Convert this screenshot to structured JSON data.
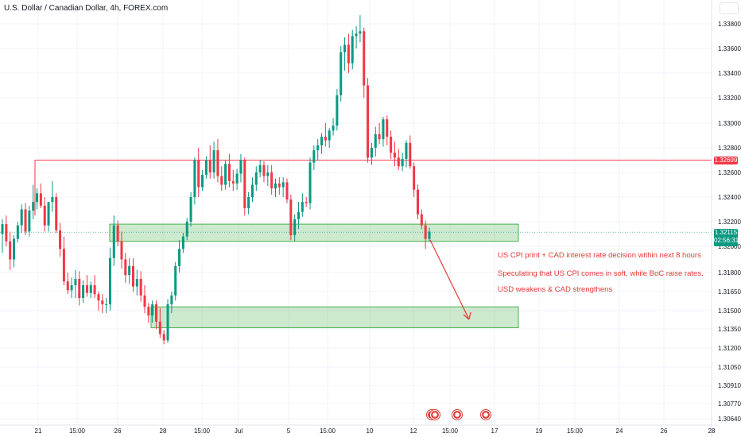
{
  "header": {
    "title": "U.S. Dollar / Canadian Dollar, 4h, FOREX.com"
  },
  "annotations": [
    "US CPI print + CAD interest rate decision within next 8 hours",
    "Speculating that US CPI comes in soft, while BoC raise rates.",
    "USD weakens & CAD strengthens"
  ],
  "price_tags": {
    "horizontal_line": "1.32699",
    "last_price": "1.32115",
    "countdown": "02:56:31"
  },
  "colors": {
    "up": "#089981",
    "down": "#f23645",
    "zone": "#4caf50",
    "arrow": "#e53935"
  },
  "chart_data": {
    "type": "candlestick",
    "title": "U.S. Dollar / Canadian Dollar, 4h, FOREX.com",
    "y_ticks": [
      "1.33800",
      "1.33600",
      "1.33400",
      "1.33200",
      "1.33000",
      "1.32800",
      "1.32600",
      "1.32400",
      "1.32200",
      "1.32000",
      "1.31800",
      "1.31650",
      "1.31500",
      "1.31350",
      "1.31200",
      "1.31050",
      "1.30910",
      "1.30770",
      "1.30640"
    ],
    "x_ticks": [
      "21",
      "15:00",
      "26",
      "28",
      "15:00",
      "Jul",
      "5",
      "15:00",
      "10",
      "12",
      "15:00",
      "17",
      "19",
      "15:00",
      "24",
      "26",
      "28"
    ],
    "ylim": [
      1.3061,
      1.3387
    ],
    "last_price": 1.32115,
    "horizontal_line": 1.32699,
    "zones": [
      {
        "name": "support",
        "top": 1.3218,
        "bottom": 1.3204
      },
      {
        "name": "target",
        "top": 1.3153,
        "bottom": 1.3136
      }
    ],
    "candles": [
      [
        1.321,
        1.3222,
        1.3195,
        1.3218
      ],
      [
        1.3218,
        1.3225,
        1.32,
        1.3204
      ],
      [
        1.3204,
        1.3212,
        1.3182,
        1.319
      ],
      [
        1.319,
        1.3209,
        1.3184,
        1.3206
      ],
      [
        1.3206,
        1.322,
        1.3203,
        1.3217
      ],
      [
        1.3217,
        1.3234,
        1.3211,
        1.323
      ],
      [
        1.323,
        1.3235,
        1.3209,
        1.3212
      ],
      [
        1.3212,
        1.3233,
        1.3208,
        1.3229
      ],
      [
        1.3229,
        1.325,
        1.3222,
        1.3236
      ],
      [
        1.3236,
        1.3247,
        1.323,
        1.3243
      ],
      [
        1.3243,
        1.3251,
        1.3231,
        1.3233
      ],
      [
        1.3233,
        1.324,
        1.3212,
        1.3217
      ],
      [
        1.3217,
        1.3235,
        1.3212,
        1.3236
      ],
      [
        1.3236,
        1.3253,
        1.3228,
        1.324
      ],
      [
        1.324,
        1.3243,
        1.3211,
        1.3213
      ],
      [
        1.3213,
        1.3219,
        1.3192,
        1.3198
      ],
      [
        1.3198,
        1.3208,
        1.317,
        1.3173
      ],
      [
        1.3173,
        1.318,
        1.3163,
        1.3166
      ],
      [
        1.3166,
        1.3176,
        1.316,
        1.317
      ],
      [
        1.317,
        1.3182,
        1.316,
        1.3175
      ],
      [
        1.3175,
        1.3181,
        1.3154,
        1.316
      ],
      [
        1.316,
        1.3174,
        1.3156,
        1.317
      ],
      [
        1.317,
        1.3178,
        1.3161,
        1.3164
      ],
      [
        1.3164,
        1.3173,
        1.316,
        1.317
      ],
      [
        1.317,
        1.3178,
        1.316,
        1.3163
      ],
      [
        1.3163,
        1.3165,
        1.315,
        1.3158
      ],
      [
        1.3158,
        1.3163,
        1.3148,
        1.3155
      ],
      [
        1.3155,
        1.316,
        1.3148,
        1.3155
      ],
      [
        1.3155,
        1.3199,
        1.315,
        1.3191
      ],
      [
        1.3191,
        1.3225,
        1.3185,
        1.3217
      ],
      [
        1.3217,
        1.3221,
        1.32,
        1.3204
      ],
      [
        1.3204,
        1.3212,
        1.3183,
        1.319
      ],
      [
        1.319,
        1.3195,
        1.3172,
        1.3178
      ],
      [
        1.3178,
        1.3191,
        1.3171,
        1.3185
      ],
      [
        1.3185,
        1.3191,
        1.3165,
        1.3169
      ],
      [
        1.3169,
        1.3182,
        1.3162,
        1.3175
      ],
      [
        1.3175,
        1.3181,
        1.3157,
        1.3162
      ],
      [
        1.3162,
        1.317,
        1.3148,
        1.3153
      ],
      [
        1.3153,
        1.3156,
        1.314,
        1.3146
      ],
      [
        1.3146,
        1.3158,
        1.314,
        1.3155
      ],
      [
        1.3155,
        1.3158,
        1.3135,
        1.3141
      ],
      [
        1.3141,
        1.3152,
        1.3128,
        1.3131
      ],
      [
        1.3131,
        1.3134,
        1.3123,
        1.3126
      ],
      [
        1.3126,
        1.3159,
        1.3124,
        1.3155
      ],
      [
        1.3155,
        1.3165,
        1.3148,
        1.3162
      ],
      [
        1.3162,
        1.3188,
        1.3158,
        1.3185
      ],
      [
        1.3185,
        1.3205,
        1.318,
        1.3198
      ],
      [
        1.3198,
        1.3211,
        1.3195,
        1.3208
      ],
      [
        1.3208,
        1.3223,
        1.3205,
        1.322
      ],
      [
        1.322,
        1.3244,
        1.3216,
        1.324
      ],
      [
        1.324,
        1.3272,
        1.3234,
        1.327
      ],
      [
        1.327,
        1.328,
        1.324,
        1.3248
      ],
      [
        1.3248,
        1.3262,
        1.3245,
        1.3258
      ],
      [
        1.3258,
        1.3273,
        1.3255,
        1.327
      ],
      [
        1.327,
        1.3282,
        1.3255,
        1.326
      ],
      [
        1.326,
        1.3285,
        1.3255,
        1.3278
      ],
      [
        1.3278,
        1.3287,
        1.3252,
        1.3257
      ],
      [
        1.3257,
        1.3265,
        1.3245,
        1.325
      ],
      [
        1.325,
        1.327,
        1.3246,
        1.3267
      ],
      [
        1.3267,
        1.3275,
        1.3248,
        1.3253
      ],
      [
        1.3253,
        1.3262,
        1.3245,
        1.3251
      ],
      [
        1.3251,
        1.3263,
        1.3246,
        1.3259
      ],
      [
        1.3259,
        1.3275,
        1.3252,
        1.327
      ],
      [
        1.327,
        1.3272,
        1.3225,
        1.3231
      ],
      [
        1.3231,
        1.3244,
        1.3226,
        1.324
      ],
      [
        1.324,
        1.3256,
        1.3236,
        1.325
      ],
      [
        1.325,
        1.3265,
        1.3245,
        1.326
      ],
      [
        1.326,
        1.327,
        1.3256,
        1.3266
      ],
      [
        1.3266,
        1.3269,
        1.3252,
        1.3257
      ],
      [
        1.3257,
        1.3266,
        1.3249,
        1.326
      ],
      [
        1.326,
        1.3266,
        1.3242,
        1.3247
      ],
      [
        1.3247,
        1.3255,
        1.324,
        1.3251
      ],
      [
        1.3251,
        1.3256,
        1.3242,
        1.3248
      ],
      [
        1.3248,
        1.3256,
        1.324,
        1.3252
      ],
      [
        1.3252,
        1.3255,
        1.3235,
        1.3238
      ],
      [
        1.3238,
        1.3242,
        1.3205,
        1.3209
      ],
      [
        1.3209,
        1.3226,
        1.3204,
        1.3222
      ],
      [
        1.3222,
        1.3236,
        1.3214,
        1.3228
      ],
      [
        1.3228,
        1.3243,
        1.3224,
        1.3236
      ],
      [
        1.3236,
        1.324,
        1.3232,
        1.3235
      ],
      [
        1.3235,
        1.3272,
        1.323,
        1.3268
      ],
      [
        1.3268,
        1.3282,
        1.3262,
        1.3278
      ],
      [
        1.3278,
        1.3287,
        1.327,
        1.3282
      ],
      [
        1.3282,
        1.3292,
        1.3275,
        1.3289
      ],
      [
        1.3289,
        1.33,
        1.3281,
        1.3286
      ],
      [
        1.3286,
        1.3296,
        1.328,
        1.3294
      ],
      [
        1.3294,
        1.3304,
        1.329,
        1.3298
      ],
      [
        1.3298,
        1.3327,
        1.3294,
        1.3322
      ],
      [
        1.3322,
        1.3362,
        1.3317,
        1.3357
      ],
      [
        1.3357,
        1.3369,
        1.3342,
        1.3363
      ],
      [
        1.3363,
        1.3372,
        1.334,
        1.3348
      ],
      [
        1.3348,
        1.3375,
        1.3343,
        1.337
      ],
      [
        1.337,
        1.3378,
        1.336,
        1.3372
      ],
      [
        1.3372,
        1.3387,
        1.3365,
        1.3374
      ],
      [
        1.3374,
        1.3377,
        1.332,
        1.333
      ],
      [
        1.333,
        1.3336,
        1.3268,
        1.3272
      ],
      [
        1.3272,
        1.3284,
        1.3266,
        1.328
      ],
      [
        1.328,
        1.3297,
        1.3273,
        1.3291
      ],
      [
        1.3291,
        1.33,
        1.3283,
        1.3287
      ],
      [
        1.3287,
        1.3305,
        1.3281,
        1.3303
      ],
      [
        1.3303,
        1.3306,
        1.3282,
        1.3289
      ],
      [
        1.3289,
        1.3294,
        1.3271,
        1.3276
      ],
      [
        1.3276,
        1.3285,
        1.3265,
        1.3272
      ],
      [
        1.3272,
        1.3279,
        1.3262,
        1.3265
      ],
      [
        1.3265,
        1.3276,
        1.3261,
        1.3271
      ],
      [
        1.3271,
        1.3286,
        1.3264,
        1.3284
      ],
      [
        1.3284,
        1.329,
        1.3263,
        1.3265
      ],
      [
        1.3265,
        1.3268,
        1.324,
        1.3246
      ],
      [
        1.3246,
        1.325,
        1.3222,
        1.3226
      ],
      [
        1.3226,
        1.323,
        1.3214,
        1.3217
      ],
      [
        1.3217,
        1.3221,
        1.3198,
        1.3206
      ],
      [
        1.3206,
        1.3215,
        1.3204,
        1.3212
      ]
    ]
  }
}
